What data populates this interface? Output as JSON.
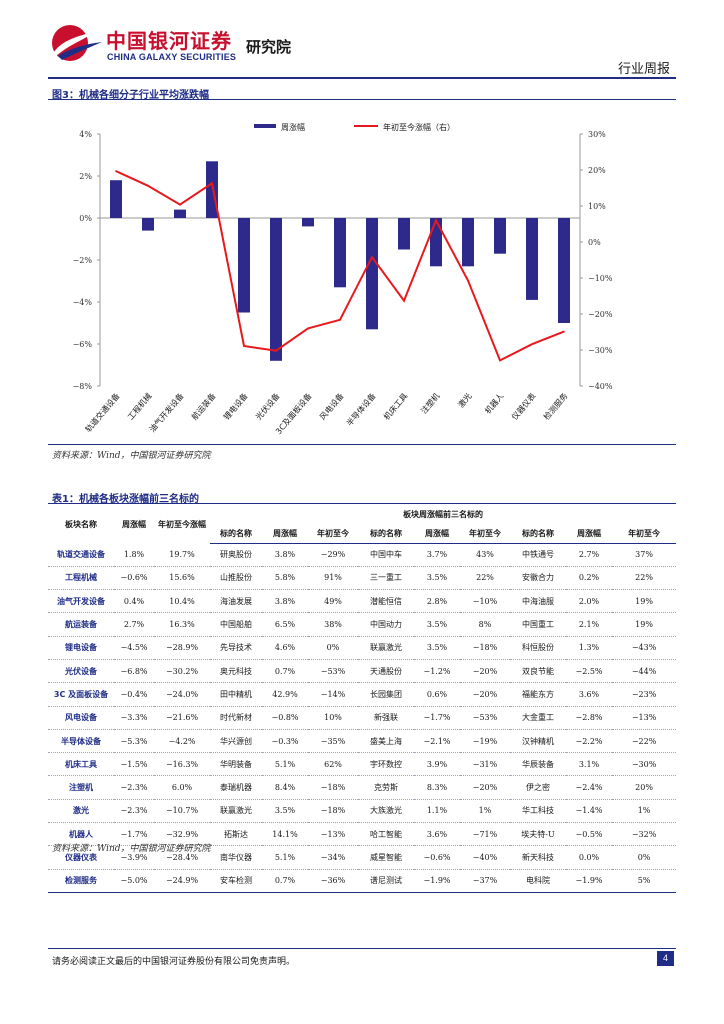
{
  "header": {
    "brand_cn": "中国银河证券",
    "brand_en": "CHINA GALAXY SECURITIES",
    "institute": "研究院",
    "report_type": "行业周报"
  },
  "figure": {
    "title": "图3：机械各细分子行业平均涨跌幅",
    "source": "资料来源：Wind，中国银河证券研究院"
  },
  "chart_data": {
    "type": "bar",
    "categories": [
      "轨道交通设备",
      "工程机械",
      "油气开发设备",
      "航运装备",
      "锂电设备",
      "光伏设备",
      "3C及面板设备",
      "风电设备",
      "半导体设备",
      "机床工具",
      "注塑机",
      "激光",
      "机器人",
      "仪器仪表",
      "检测服务"
    ],
    "series": [
      {
        "name": "周涨幅",
        "type": "bar",
        "axis": "left",
        "color": "#2e2a8c",
        "values": [
          1.8,
          -0.6,
          0.4,
          2.7,
          -4.5,
          -6.8,
          -0.4,
          -3.3,
          -5.3,
          -1.5,
          -2.3,
          -2.3,
          -1.7,
          -3.9,
          -5.0
        ]
      },
      {
        "name": "年初至今涨幅（右）",
        "type": "line",
        "axis": "right",
        "color": "#e8191c",
        "values": [
          19.7,
          15.6,
          10.4,
          16.3,
          -28.9,
          -30.2,
          -24.0,
          -21.6,
          -4.2,
          -16.3,
          6.0,
          -10.7,
          -32.9,
          -28.4,
          -24.9
        ]
      }
    ],
    "ylim_left": [
      -8,
      4
    ],
    "ylim_right": [
      -40,
      30
    ],
    "yticks_left": [
      "4%",
      "2%",
      "0%",
      "−2%",
      "−4%",
      "−6%",
      "−8%"
    ],
    "yticks_right": [
      "30%",
      "20%",
      "10%",
      "0%",
      "−10%",
      "−20%",
      "−30%",
      "−40%"
    ],
    "legend": "top",
    "grid": false
  },
  "table": {
    "title": "表1：机械各板块涨幅前三名标的",
    "group_header": "板块周涨幅前三名标的",
    "col_sector": "板块名称",
    "col_weekly": "周涨幅",
    "col_ytd": "年初至今涨幅",
    "sub_name": "标的名称",
    "sub_weekly": "周涨幅",
    "sub_ytd": "年初至今",
    "rows": [
      {
        "sector": "轨道交通设备",
        "weekly": "1.8%",
        "ytd": "19.7%",
        "s1": [
          "研奥股份",
          "3.8%",
          "−29%"
        ],
        "s2": [
          "中国中车",
          "3.7%",
          "43%"
        ],
        "s3": [
          "中铁通号",
          "2.7%",
          "37%"
        ]
      },
      {
        "sector": "工程机械",
        "weekly": "−0.6%",
        "ytd": "15.6%",
        "s1": [
          "山推股份",
          "5.8%",
          "91%"
        ],
        "s2": [
          "三一重工",
          "3.5%",
          "22%"
        ],
        "s3": [
          "安徽合力",
          "0.2%",
          "22%"
        ]
      },
      {
        "sector": "油气开发设备",
        "weekly": "0.4%",
        "ytd": "10.4%",
        "s1": [
          "海油发展",
          "3.8%",
          "49%"
        ],
        "s2": [
          "潜能恒信",
          "2.8%",
          "−10%"
        ],
        "s3": [
          "中海油服",
          "2.0%",
          "19%"
        ]
      },
      {
        "sector": "航运装备",
        "weekly": "2.7%",
        "ytd": "16.3%",
        "s1": [
          "中国船舶",
          "6.5%",
          "38%"
        ],
        "s2": [
          "中国动力",
          "3.5%",
          "8%"
        ],
        "s3": [
          "中国重工",
          "2.1%",
          "19%"
        ]
      },
      {
        "sector": "锂电设备",
        "weekly": "−4.5%",
        "ytd": "−28.9%",
        "s1": [
          "先导技术",
          "4.6%",
          "0%"
        ],
        "s2": [
          "联赢激光",
          "3.5%",
          "−18%"
        ],
        "s3": [
          "科恒股份",
          "1.3%",
          "−43%"
        ]
      },
      {
        "sector": "光伏设备",
        "weekly": "−6.8%",
        "ytd": "−30.2%",
        "s1": [
          "奥元科技",
          "0.7%",
          "−53%"
        ],
        "s2": [
          "天通股份",
          "−1.2%",
          "−20%"
        ],
        "s3": [
          "双良节能",
          "−2.5%",
          "−44%"
        ]
      },
      {
        "sector": "3C 及面板设备",
        "weekly": "−0.4%",
        "ytd": "−24.0%",
        "s1": [
          "田中精机",
          "42.9%",
          "−14%"
        ],
        "s2": [
          "长园集团",
          "0.6%",
          "−20%"
        ],
        "s3": [
          "福能东方",
          "3.6%",
          "−23%"
        ]
      },
      {
        "sector": "风电设备",
        "weekly": "−3.3%",
        "ytd": "−21.6%",
        "s1": [
          "时代新材",
          "−0.8%",
          "10%"
        ],
        "s2": [
          "新强联",
          "−1.7%",
          "−53%"
        ],
        "s3": [
          "大金重工",
          "−2.8%",
          "−13%"
        ]
      },
      {
        "sector": "半导体设备",
        "weekly": "−5.3%",
        "ytd": "−4.2%",
        "s1": [
          "华兴源创",
          "−0.3%",
          "−35%"
        ],
        "s2": [
          "盛美上海",
          "−2.1%",
          "−19%"
        ],
        "s3": [
          "汉钟精机",
          "−2.2%",
          "−22%"
        ]
      },
      {
        "sector": "机床工具",
        "weekly": "−1.5%",
        "ytd": "−16.3%",
        "s1": [
          "华明装备",
          "5.1%",
          "62%"
        ],
        "s2": [
          "宇环数控",
          "3.9%",
          "−31%"
        ],
        "s3": [
          "华辰装备",
          "3.1%",
          "−30%"
        ]
      },
      {
        "sector": "注塑机",
        "weekly": "−2.3%",
        "ytd": "6.0%",
        "s1": [
          "泰瑞机器",
          "8.4%",
          "−18%"
        ],
        "s2": [
          "克劳斯",
          "8.3%",
          "−20%"
        ],
        "s3": [
          "伊之密",
          "−2.4%",
          "20%"
        ]
      },
      {
        "sector": "激光",
        "weekly": "−2.3%",
        "ytd": "−10.7%",
        "s1": [
          "联赢激光",
          "3.5%",
          "−18%"
        ],
        "s2": [
          "大族激光",
          "1.1%",
          "1%"
        ],
        "s3": [
          "华工科技",
          "−1.4%",
          "1%"
        ]
      },
      {
        "sector": "机器人",
        "weekly": "−1.7%",
        "ytd": "−32.9%",
        "s1": [
          "拓斯达",
          "14.1%",
          "−13%"
        ],
        "s2": [
          "哈工智能",
          "3.6%",
          "−71%"
        ],
        "s3": [
          "埃夫特-U",
          "−0.5%",
          "−32%"
        ]
      },
      {
        "sector": "仪器仪表",
        "weekly": "−3.9%",
        "ytd": "−28.4%",
        "s1": [
          "南华仪器",
          "5.1%",
          "−34%"
        ],
        "s2": [
          "威星智能",
          "−0.6%",
          "−40%"
        ],
        "s3": [
          "新天科技",
          "0.0%",
          "0%"
        ]
      },
      {
        "sector": "检测服务",
        "weekly": "−5.0%",
        "ytd": "−24.9%",
        "s1": [
          "安车检测",
          "0.7%",
          "−36%"
        ],
        "s2": [
          "谱尼测试",
          "−1.9%",
          "−37%"
        ],
        "s3": [
          "电科院",
          "−1.9%",
          "5%"
        ]
      }
    ],
    "source": "资料来源：Wind，中国银河证券研究院"
  },
  "footer": {
    "disclaimer": "请务必阅读正文最后的中国银河证券股份有限公司免责声明。",
    "page": "4"
  },
  "colors": {
    "brand_red": "#c8102e",
    "brand_blue": "#1f2d86",
    "bar": "#2e2a8c",
    "line": "#e8191c"
  }
}
